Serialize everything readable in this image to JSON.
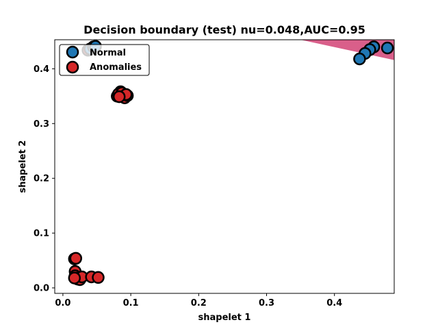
{
  "chart_data": {
    "type": "scatter",
    "title": "Decision boundary (test) nu=0.048,AUC=0.95",
    "xlabel": "shapelet 1",
    "ylabel": "shapelet 2",
    "xlim": [
      -0.012,
      0.488
    ],
    "ylim": [
      -0.01,
      0.453
    ],
    "xticks": [
      0.0,
      0.1,
      0.2,
      0.3,
      0.4
    ],
    "yticks": [
      0.0,
      0.1,
      0.2,
      0.3,
      0.4
    ],
    "xtick_labels": [
      "0.0",
      "0.1",
      "0.2",
      "0.3",
      "0.4"
    ],
    "ytick_labels": [
      "0.0",
      "0.1",
      "0.2",
      "0.3",
      "0.4"
    ],
    "grid": false,
    "legend": {
      "position": "top-left",
      "entries": [
        "Normal",
        "Anomalies"
      ]
    },
    "decision_region": {
      "color": "#d95f8a",
      "polygon": [
        [
          0.35,
          0.453
        ],
        [
          0.488,
          0.453
        ],
        [
          0.488,
          0.416
        ]
      ]
    },
    "series": [
      {
        "name": "Normal",
        "color": "#1f77b4",
        "x": [
          0.04,
          0.045,
          0.048,
          0.458,
          0.478,
          0.452,
          0.445,
          0.437
        ],
        "y": [
          0.436,
          0.44,
          0.441,
          0.44,
          0.438,
          0.435,
          0.428,
          0.418
        ]
      },
      {
        "name": "Anomalies",
        "color": "#d62728",
        "x": [
          0.037,
          0.08,
          0.085,
          0.082,
          0.088,
          0.091,
          0.095,
          0.087,
          0.093,
          0.083,
          0.017,
          0.019,
          0.018,
          0.018,
          0.02,
          0.022,
          0.025,
          0.028,
          0.042,
          0.052,
          0.017
        ],
        "y": [
          0.434,
          0.35,
          0.358,
          0.354,
          0.352,
          0.347,
          0.351,
          0.356,
          0.353,
          0.349,
          0.053,
          0.054,
          0.03,
          0.022,
          0.018,
          0.016,
          0.015,
          0.02,
          0.02,
          0.019,
          0.018
        ]
      }
    ]
  }
}
